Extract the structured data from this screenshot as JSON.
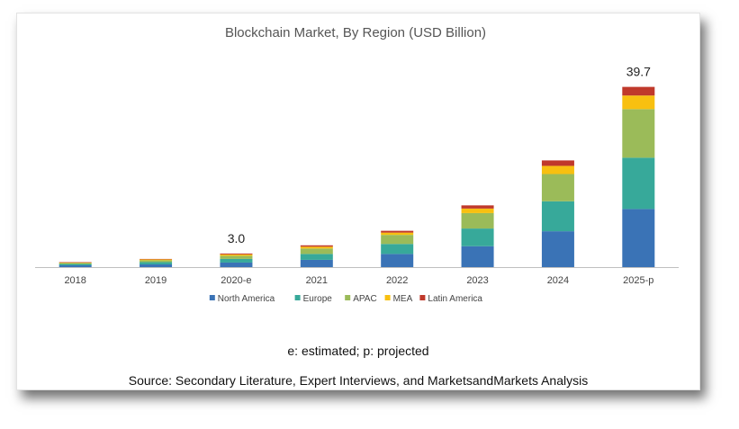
{
  "chart_data": {
    "type": "bar",
    "stacked": true,
    "title": "Blockchain Market, By Region (USD Billion)",
    "xlabel": "",
    "ylabel": "",
    "categories": [
      "2018",
      "2019",
      "2020-e",
      "2021",
      "2022",
      "2023",
      "2024",
      "2025-p"
    ],
    "series": [
      {
        "name": "North America",
        "color": "#3a73b6",
        "values": [
          0.4,
          0.6,
          1.0,
          1.6,
          2.9,
          4.6,
          7.9,
          12.8
        ]
      },
      {
        "name": "Europe",
        "color": "#37a99a",
        "values": [
          0.3,
          0.5,
          0.8,
          1.3,
          2.2,
          3.9,
          6.6,
          11.3
        ]
      },
      {
        "name": "APAC",
        "color": "#9bbb59",
        "values": [
          0.2,
          0.4,
          0.7,
          1.2,
          2.0,
          3.4,
          6.0,
          10.7
        ]
      },
      {
        "name": "MEA",
        "color": "#f8c010",
        "values": [
          0.1,
          0.2,
          0.3,
          0.4,
          0.5,
          1.0,
          1.8,
          3.0
        ]
      },
      {
        "name": "Latin America",
        "color": "#c0392b",
        "values": [
          0.1,
          0.1,
          0.2,
          0.3,
          0.4,
          0.7,
          1.2,
          1.9
        ]
      }
    ],
    "data_labels": [
      {
        "category": "2020-e",
        "text": "3.0"
      },
      {
        "category": "2025-p",
        "text": "39.7"
      }
    ],
    "ylim": [
      0,
      42
    ],
    "grid": false,
    "legend_position": "bottom"
  },
  "footnote": "e: estimated; p: projected",
  "source": "Source: Secondary Literature, Expert Interviews, and MarketsandMarkets Analysis"
}
